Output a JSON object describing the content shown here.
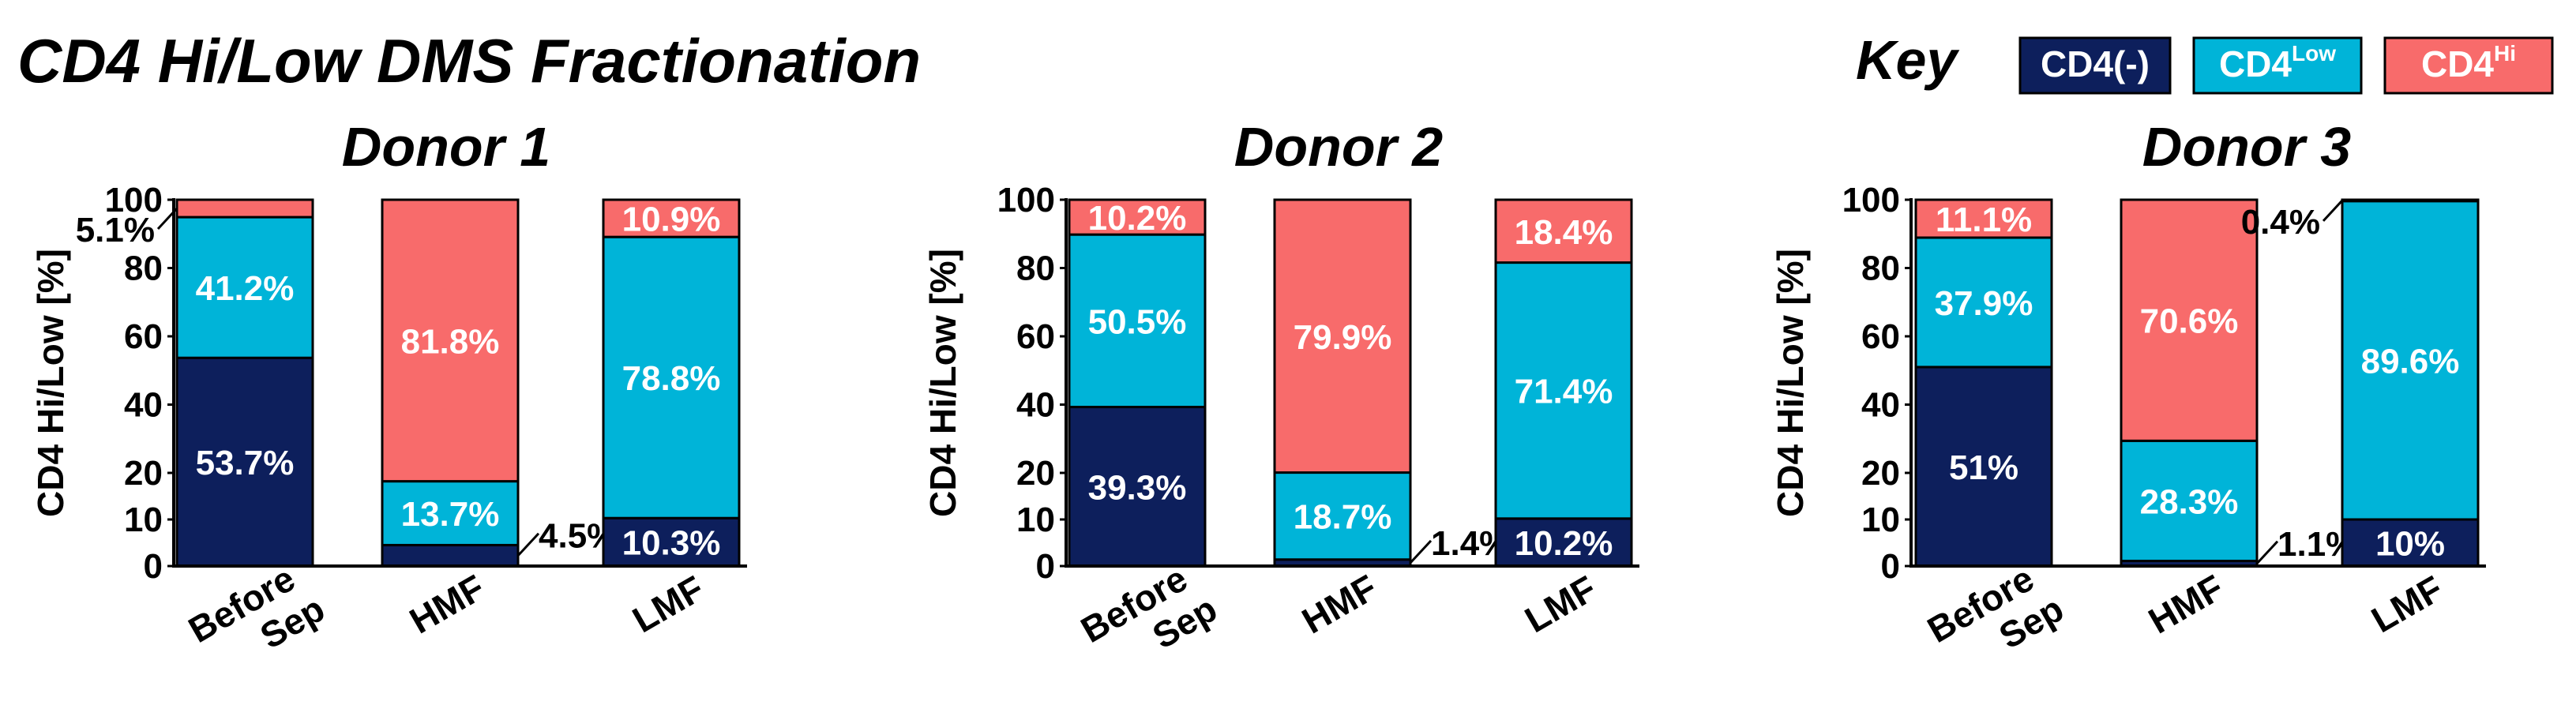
{
  "page_title": "CD4 Hi/Low DMS Fractionation",
  "legend": {
    "label": "Key",
    "items": [
      {
        "base": "CD4",
        "suffix": "(-)",
        "sup": "",
        "color": "#0d1f5c"
      },
      {
        "base": "CD4",
        "suffix": "",
        "sup": "Low",
        "color": "#00b4d8"
      },
      {
        "base": "CD4",
        "suffix": "",
        "sup": "Hi",
        "color": "#f86b6b"
      }
    ]
  },
  "chart_data": [
    {
      "type": "bar",
      "stacked": true,
      "title": "Donor 1",
      "ylabel": "CD4 Hi/Low [%]",
      "yticks": [
        "0",
        "10",
        "20",
        "40",
        "60",
        "80",
        "100"
      ],
      "ylim": [
        0,
        100
      ],
      "categories": [
        [
          "Before",
          "Sep"
        ],
        [
          "HMF"
        ],
        [
          "LMF"
        ]
      ],
      "series": [
        {
          "name": "CD4(-)",
          "values": [
            53.7,
            4.5,
            10.3
          ],
          "labels": [
            "53.7%",
            "4.5%",
            "10.3%"
          ]
        },
        {
          "name": "CD4 Low",
          "values": [
            41.2,
            13.7,
            78.8
          ],
          "labels": [
            "41.2%",
            "13.7%",
            "78.8%"
          ]
        },
        {
          "name": "CD4 Hi",
          "values": [
            5.1,
            81.8,
            10.9
          ],
          "labels": [
            "5.1%",
            "81.8%",
            "10.9%"
          ]
        }
      ]
    },
    {
      "type": "bar",
      "stacked": true,
      "title": "Donor 2",
      "ylabel": "CD4 Hi/Low [%]",
      "yticks": [
        "0",
        "10",
        "20",
        "40",
        "60",
        "80",
        "100"
      ],
      "ylim": [
        0,
        100
      ],
      "categories": [
        [
          "Before",
          "Sep"
        ],
        [
          "HMF"
        ],
        [
          "LMF"
        ]
      ],
      "series": [
        {
          "name": "CD4(-)",
          "values": [
            39.3,
            1.4,
            10.2
          ],
          "labels": [
            "39.3%",
            "1.4%",
            "10.2%"
          ]
        },
        {
          "name": "CD4 Low",
          "values": [
            50.5,
            18.7,
            71.4
          ],
          "labels": [
            "50.5%",
            "18.7%",
            "71.4%"
          ]
        },
        {
          "name": "CD4 Hi",
          "values": [
            10.2,
            79.9,
            18.4
          ],
          "labels": [
            "10.2%",
            "79.9%",
            "18.4%"
          ]
        }
      ]
    },
    {
      "type": "bar",
      "stacked": true,
      "title": "Donor 3",
      "ylabel": "CD4 Hi/Low [%]",
      "yticks": [
        "0",
        "10",
        "20",
        "40",
        "60",
        "80",
        "100"
      ],
      "ylim": [
        0,
        100
      ],
      "categories": [
        [
          "Before",
          "Sep"
        ],
        [
          "HMF"
        ],
        [
          "LMF"
        ]
      ],
      "series": [
        {
          "name": "CD4(-)",
          "values": [
            51,
            1.1,
            10
          ],
          "labels": [
            "51%",
            "1.1%",
            "10%"
          ]
        },
        {
          "name": "CD4 Low",
          "values": [
            37.9,
            28.3,
            89.6
          ],
          "labels": [
            "37.9%",
            "28.3%",
            "89.6%"
          ]
        },
        {
          "name": "CD4 Hi",
          "values": [
            11.1,
            70.6,
            0.4
          ],
          "labels": [
            "11.1%",
            "70.6%",
            "0.4%"
          ]
        }
      ]
    }
  ]
}
